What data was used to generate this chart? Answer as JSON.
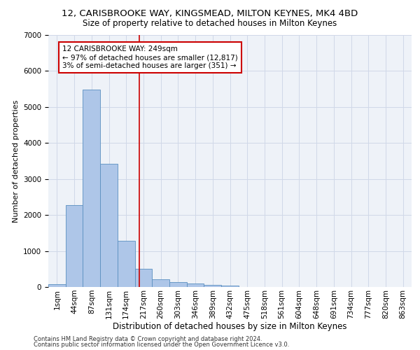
{
  "title": "12, CARISBROOKE WAY, KINGSMEAD, MILTON KEYNES, MK4 4BD",
  "subtitle": "Size of property relative to detached houses in Milton Keynes",
  "xlabel": "Distribution of detached houses by size in Milton Keynes",
  "ylabel": "Number of detached properties",
  "footer_line1": "Contains HM Land Registry data © Crown copyright and database right 2024.",
  "footer_line2": "Contains public sector information licensed under the Open Government Licence v3.0.",
  "bin_labels": [
    "1sqm",
    "44sqm",
    "87sqm",
    "131sqm",
    "174sqm",
    "217sqm",
    "260sqm",
    "303sqm",
    "346sqm",
    "389sqm",
    "432sqm",
    "475sqm",
    "518sqm",
    "561sqm",
    "604sqm",
    "648sqm",
    "691sqm",
    "734sqm",
    "777sqm",
    "820sqm",
    "863sqm"
  ],
  "bar_values": [
    75,
    2280,
    5480,
    3420,
    1290,
    510,
    205,
    145,
    95,
    60,
    45,
    0,
    0,
    0,
    0,
    0,
    0,
    0,
    0,
    0,
    0
  ],
  "bar_color": "#aec6e8",
  "bar_edge_color": "#5a8fc0",
  "grid_color": "#d0d8e8",
  "bg_color": "#eef2f8",
  "vline_x": 4.74,
  "vline_color": "#cc0000",
  "annotation_text": "12 CARISBROOKE WAY: 249sqm\n← 97% of detached houses are smaller (12,817)\n3% of semi-detached houses are larger (351) →",
  "annotation_box_color": "#cc0000",
  "ylim": [
    0,
    7000
  ],
  "yticks": [
    0,
    1000,
    2000,
    3000,
    4000,
    5000,
    6000,
    7000
  ],
  "title_fontsize": 9.5,
  "subtitle_fontsize": 8.5,
  "xlabel_fontsize": 8.5,
  "ylabel_fontsize": 8.0,
  "tick_fontsize": 7.5,
  "annotation_fontsize": 7.5,
  "footer_fontsize": 6.0
}
